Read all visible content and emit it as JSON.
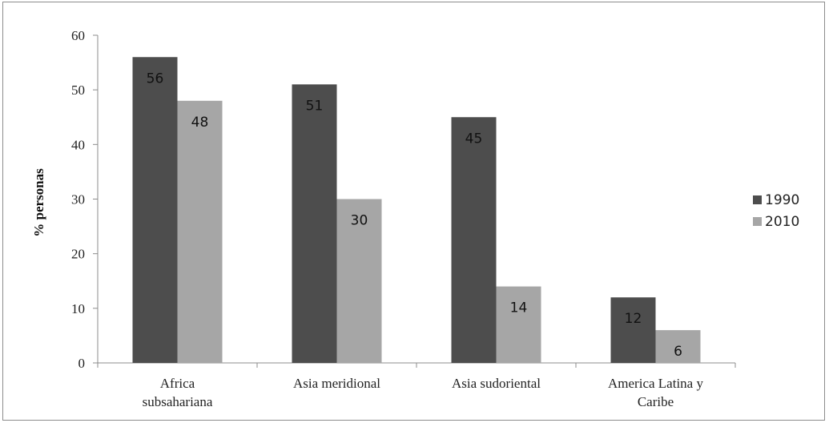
{
  "chart_data": {
    "type": "bar",
    "title": "",
    "xlabel": "",
    "ylabel": "% personas",
    "ylim": [
      0,
      60
    ],
    "yticks": [
      0,
      10,
      20,
      30,
      40,
      50,
      60
    ],
    "grid": false,
    "legend_position": "right",
    "categories": [
      [
        "Africa",
        "subsahariana"
      ],
      [
        "Asia meridional"
      ],
      [
        "Asia sudoriental"
      ],
      [
        "America Latina y",
        "Caribe"
      ]
    ],
    "series": [
      {
        "name": "1990",
        "color": "#4d4d4d",
        "values": [
          56,
          51,
          45,
          12
        ]
      },
      {
        "name": "2010",
        "color": "#a6a6a6",
        "values": [
          48,
          30,
          14,
          6
        ]
      }
    ]
  }
}
